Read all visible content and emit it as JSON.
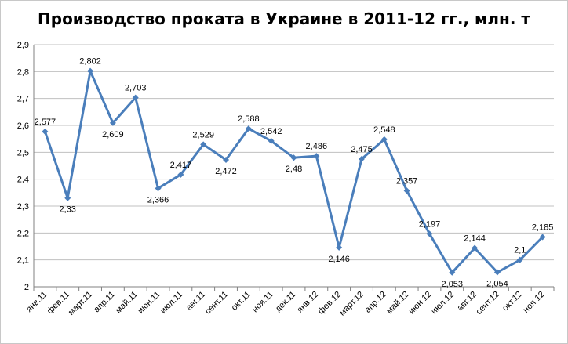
{
  "chart_data": {
    "type": "line",
    "title": "Производство проката в Украине в 2011-12 гг., млн. т",
    "xlabel": "",
    "ylabel": "",
    "ylim": [
      2,
      2.9
    ],
    "ytick_step": 0.1,
    "yticks": [
      "2",
      "2,1",
      "2,2",
      "2,3",
      "2,4",
      "2,5",
      "2,6",
      "2,7",
      "2,8",
      "2,9"
    ],
    "grid": true,
    "legend": "none",
    "color": "#4a7ebb",
    "categories": [
      "янв.11",
      "фев.11",
      "март.11",
      "апр.11",
      "май.11",
      "июн.11",
      "июл.11",
      "авг.11",
      "сент.11",
      "окт.11",
      "ноя.11",
      "дек.11",
      "янв.12",
      "фев.12",
      "март.12",
      "апр.12",
      "май.12",
      "июн.12",
      "июл.12",
      "авг.12",
      "сент.12",
      "окт.12",
      "ноя.12"
    ],
    "values": [
      2.577,
      2.33,
      2.802,
      2.609,
      2.703,
      2.366,
      2.417,
      2.529,
      2.472,
      2.588,
      2.542,
      2.48,
      2.486,
      2.146,
      2.475,
      2.548,
      2.357,
      2.197,
      2.053,
      2.144,
      2.054,
      2.1,
      2.185
    ],
    "value_labels": [
      "2,577",
      "2,33",
      "2,802",
      "2,609",
      "2,703",
      "2,366",
      "2,417",
      "2,529",
      "2,472",
      "2,588",
      "2,542",
      "2,48",
      "2,486",
      "2,146",
      "2,475",
      "2,548",
      "2,357",
      "2,197",
      "2,053",
      "2,144",
      "2,054",
      "2,1",
      "2,185"
    ]
  }
}
